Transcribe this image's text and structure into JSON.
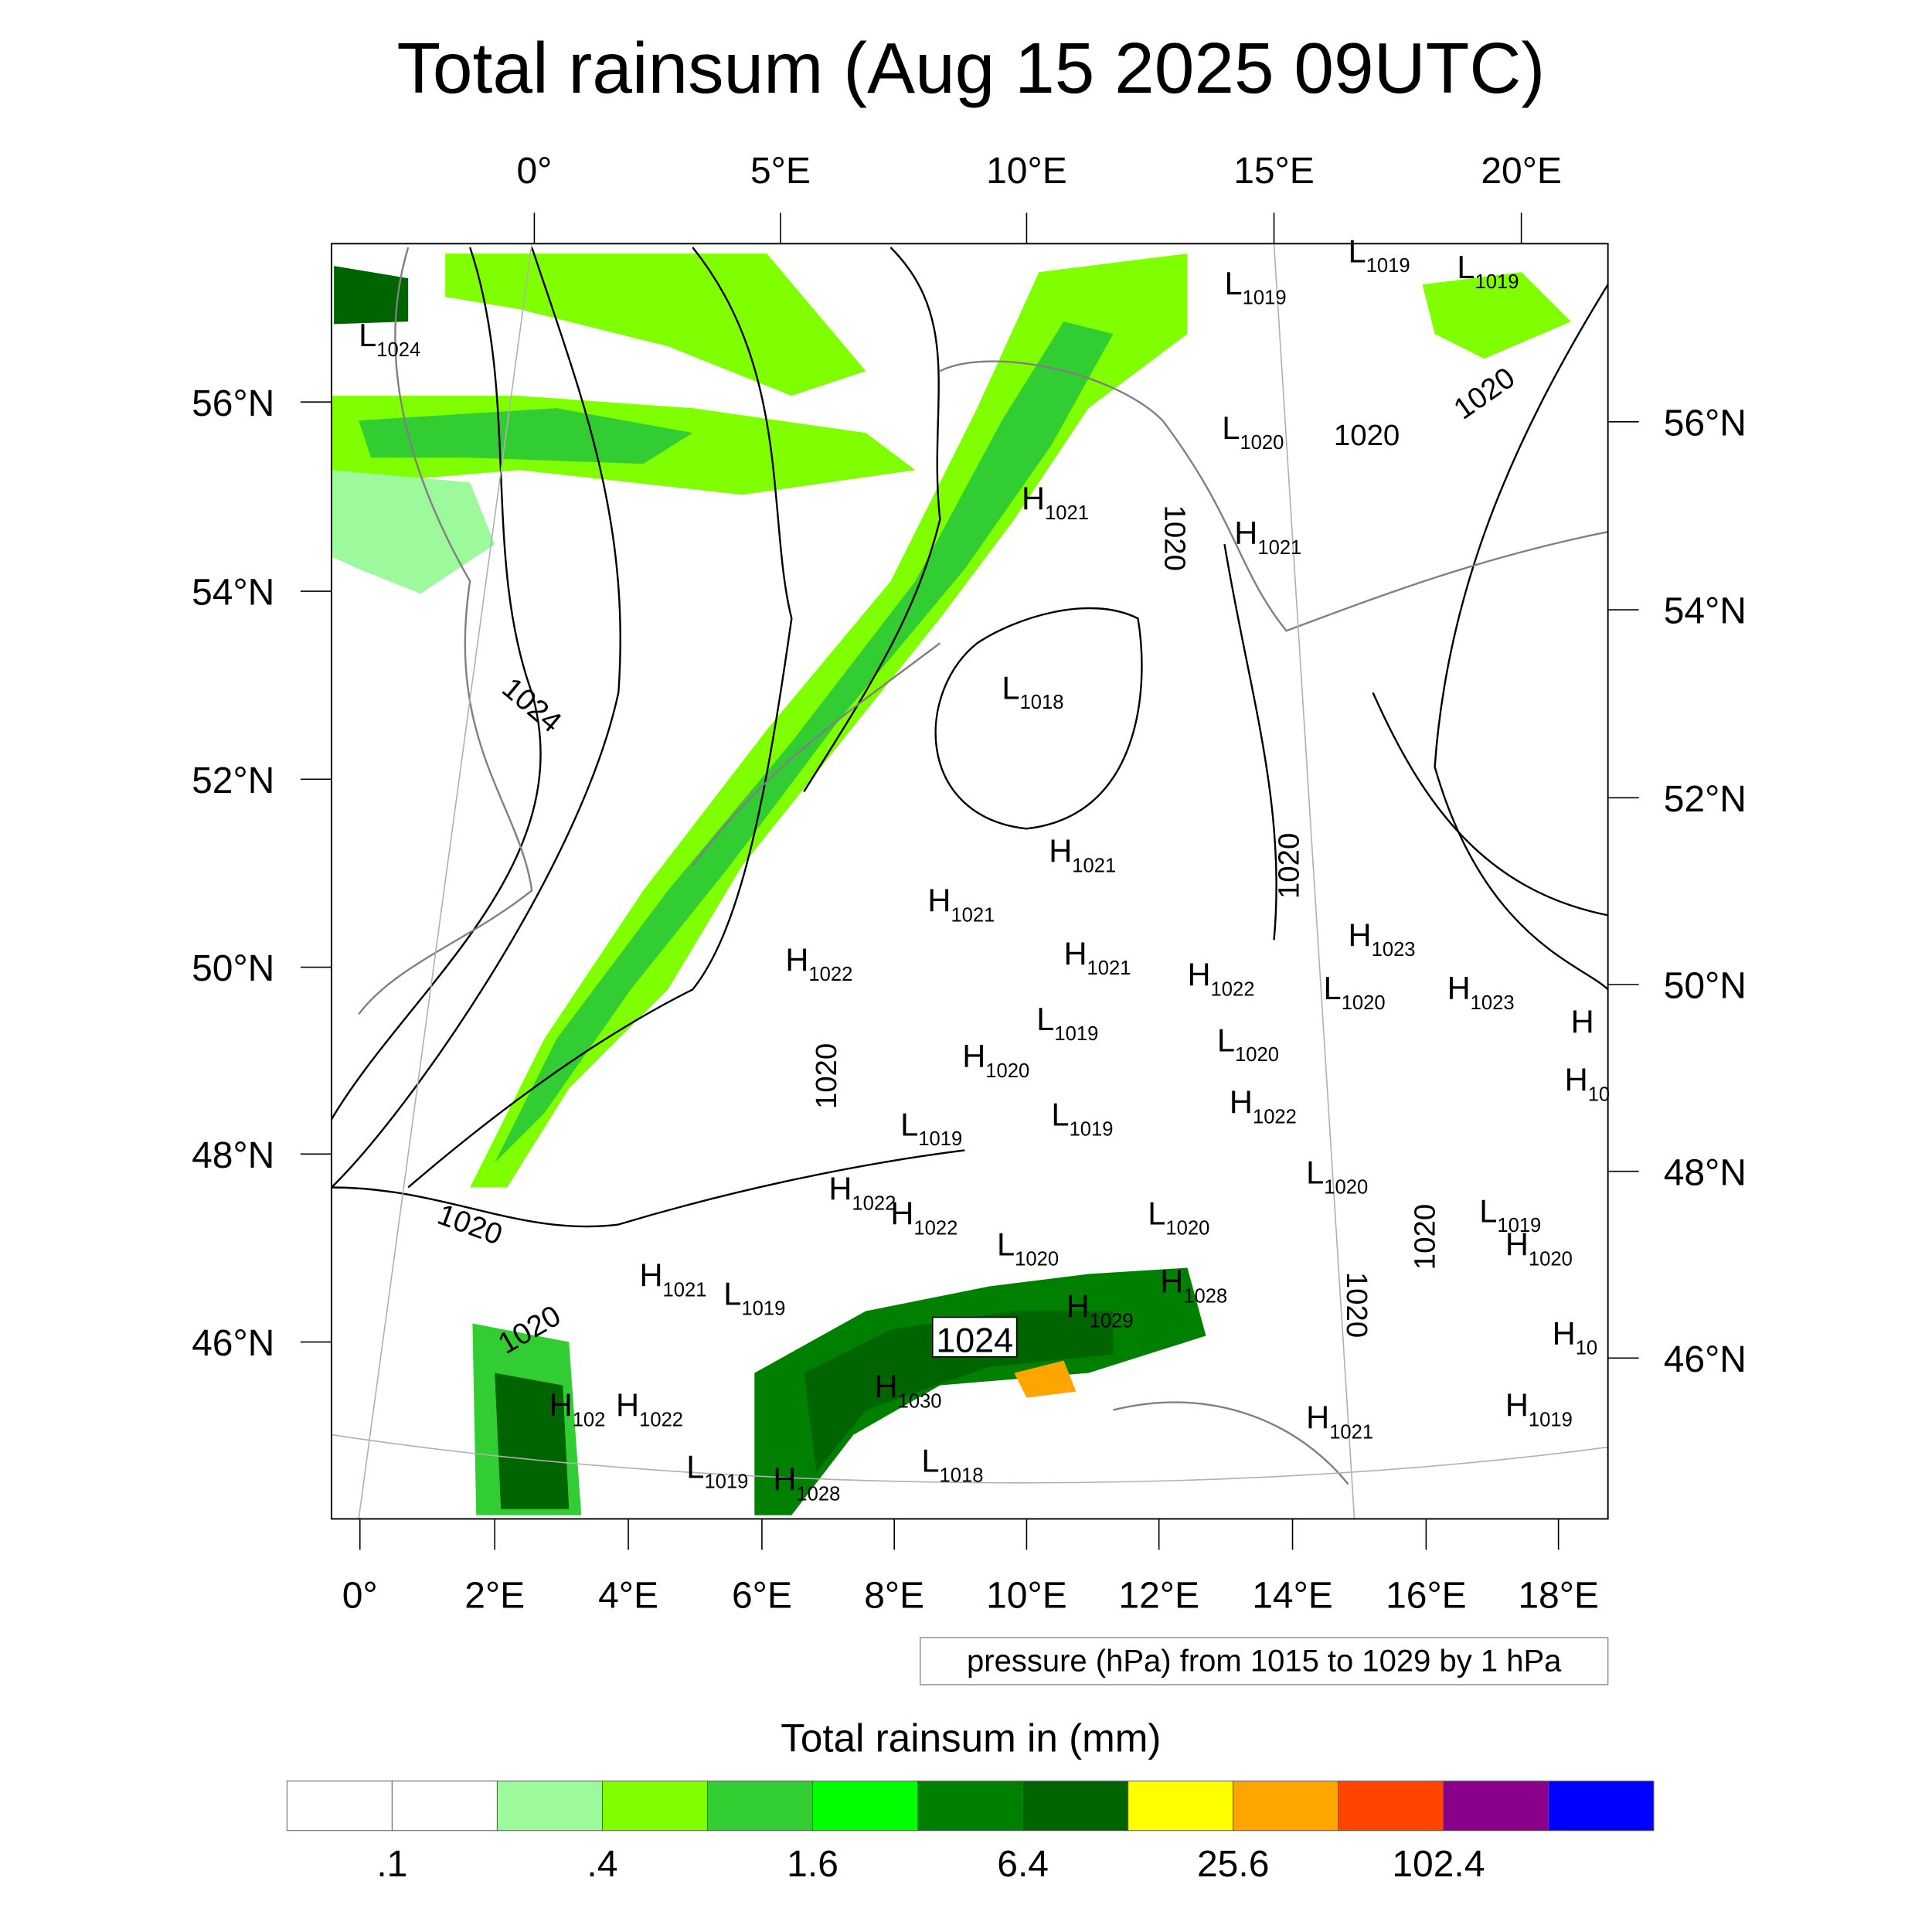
{
  "title": "Total rainsum (Aug 15 2025 09UTC)",
  "top_lon_labels": [
    "0°",
    "5°E",
    "10°E",
    "15°E",
    "20°E"
  ],
  "bottom_lon_labels": [
    "0°",
    "2°E",
    "4°E",
    "6°E",
    "8°E",
    "10°E",
    "12°E",
    "14°E",
    "16°E",
    "18°E"
  ],
  "left_lat_labels": [
    "56°N",
    "54°N",
    "52°N",
    "50°N",
    "48°N",
    "46°N"
  ],
  "right_lat_labels": [
    "56°N",
    "54°N",
    "52°N",
    "50°N",
    "48°N",
    "46°N"
  ],
  "contour_info": "pressure (hPa) from 1015 to 1029 by 1 hPa",
  "colorbar": {
    "title": "Total rainsum in (mm)",
    "colors": [
      "#ffffff",
      "#ffffff",
      "#9cf99c",
      "#80ff00",
      "#32cd32",
      "#00ff00",
      "#008000",
      "#006400",
      "#ffff00",
      "#ffa500",
      "#ff4500",
      "#8b008b",
      "#0000ff"
    ],
    "labels": [
      ".1",
      ".4",
      "1.6",
      "6.4",
      "25.6",
      "102.4"
    ]
  },
  "pressure_centers": [
    {
      "t": "L",
      "v": "1024"
    },
    {
      "t": "L",
      "v": "1019"
    },
    {
      "t": "L",
      "v": "1019"
    },
    {
      "t": "L",
      "v": "1019"
    },
    {
      "t": "L",
      "v": "1020"
    },
    {
      "t": "H",
      "v": "1021"
    },
    {
      "t": "H",
      "v": "1021"
    },
    {
      "t": "L",
      "v": "1018"
    },
    {
      "t": "H",
      "v": "1021"
    },
    {
      "t": "H",
      "v": "1021"
    },
    {
      "t": "H",
      "v": "1022"
    },
    {
      "t": "H",
      "v": "1021"
    },
    {
      "t": "H",
      "v": "1022"
    },
    {
      "t": "L",
      "v": "1019"
    },
    {
      "t": "L",
      "v": "1020"
    },
    {
      "t": "H",
      "v": "1020"
    },
    {
      "t": "H",
      "v": "1023"
    },
    {
      "t": "L",
      "v": "1020"
    },
    {
      "t": "H",
      "v": "1023"
    },
    {
      "t": "H",
      "v": ""
    },
    {
      "t": "H",
      "v": "10"
    },
    {
      "t": "L",
      "v": "1019"
    },
    {
      "t": "L",
      "v": "1019"
    },
    {
      "t": "H",
      "v": "1022"
    },
    {
      "t": "L",
      "v": "1020"
    },
    {
      "t": "H",
      "v": "1022"
    },
    {
      "t": "H",
      "v": "1022"
    },
    {
      "t": "L",
      "v": "1020"
    },
    {
      "t": "L",
      "v": "1019"
    },
    {
      "t": "H",
      "v": "1020"
    },
    {
      "t": "L",
      "v": "1020"
    },
    {
      "t": "H",
      "v": "1021"
    },
    {
      "t": "L",
      "v": "1019"
    },
    {
      "t": "H",
      "v": "1028"
    },
    {
      "t": "H",
      "v": "1029"
    },
    {
      "t": "H",
      "v": "1030"
    },
    {
      "t": "H",
      "v": "102"
    },
    {
      "t": "H",
      "v": "1022"
    },
    {
      "t": "H",
      "v": "1021"
    },
    {
      "t": "H",
      "v": "1019"
    },
    {
      "t": "H",
      "v": "10"
    },
    {
      "t": "L",
      "v": "1019"
    },
    {
      "t": "H",
      "v": "1028"
    },
    {
      "t": "L",
      "v": "1018"
    }
  ],
  "contour_labels": [
    "1024",
    "1020",
    "1020",
    "1020",
    "1020",
    "1020",
    "1020",
    "1020",
    "1020",
    "1020",
    "1024"
  ]
}
